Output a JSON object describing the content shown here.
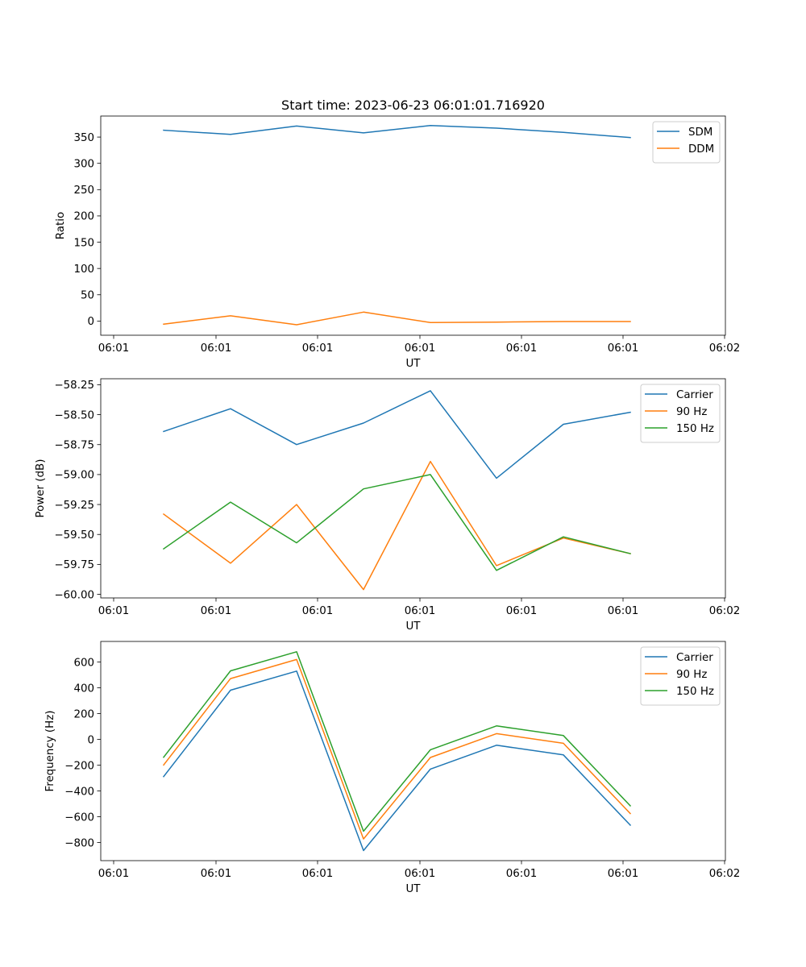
{
  "figure_title": "Start time: 2023-06-23 06:01:01.716920",
  "chart_data": [
    {
      "type": "line",
      "title": "Start time: 2023-06-23 06:01:01.716920",
      "xlabel": "UT",
      "ylabel": "Ratio",
      "x_tick_labels": [
        "06:01",
        "06:01",
        "06:01",
        "06:01",
        "06:01",
        "06:01",
        "06:02"
      ],
      "y_ticks": [
        0,
        50,
        100,
        150,
        200,
        250,
        300,
        350
      ],
      "ylim": [
        -27,
        390
      ],
      "legend_position": "upper right",
      "series": [
        {
          "name": "SDM",
          "color": "#1f77b4",
          "values": [
            363,
            355,
            371,
            358,
            372,
            367,
            359,
            349
          ]
        },
        {
          "name": "DDM",
          "color": "#ff7f0e",
          "values": [
            -6,
            10,
            -7,
            17,
            -3,
            -2,
            -1,
            -1
          ]
        }
      ]
    },
    {
      "type": "line",
      "title": "",
      "xlabel": "UT",
      "ylabel": "Power (dB)",
      "x_tick_labels": [
        "06:01",
        "06:01",
        "06:01",
        "06:01",
        "06:01",
        "06:01",
        "06:02"
      ],
      "y_ticks": [
        -60.0,
        -59.75,
        -59.5,
        -59.25,
        -59.0,
        -58.75,
        -58.5,
        -58.25
      ],
      "y_tick_labels": [
        "−60.00",
        "−59.75",
        "−59.50",
        "−59.25",
        "−59.00",
        "−58.75",
        "−58.50",
        "−58.25"
      ],
      "ylim": [
        -60.03,
        -58.2
      ],
      "legend_position": "upper right",
      "series": [
        {
          "name": "Carrier",
          "color": "#1f77b4",
          "values": [
            -58.64,
            -58.45,
            -58.75,
            -58.57,
            -58.3,
            -59.03,
            -58.58,
            -58.48
          ]
        },
        {
          "name": "90 Hz",
          "color": "#ff7f0e",
          "values": [
            -59.33,
            -59.74,
            -59.25,
            -59.96,
            -58.89,
            -59.76,
            -59.53,
            -59.66
          ]
        },
        {
          "name": "150 Hz",
          "color": "#2ca02c",
          "values": [
            -59.62,
            -59.23,
            -59.57,
            -59.12,
            -59.0,
            -59.8,
            -59.52,
            -59.66
          ]
        }
      ]
    },
    {
      "type": "line",
      "title": "",
      "xlabel": "UT",
      "ylabel": "Frequency (Hz)",
      "x_tick_labels": [
        "06:01",
        "06:01",
        "06:01",
        "06:01",
        "06:01",
        "06:01",
        "06:02"
      ],
      "y_ticks": [
        -800,
        -600,
        -400,
        -200,
        0,
        200,
        400,
        600
      ],
      "y_tick_labels": [
        "−800",
        "−600",
        "−400",
        "−200",
        "0",
        "200",
        "400",
        "600"
      ],
      "ylim": [
        -940,
        760
      ],
      "legend_position": "upper right",
      "series": [
        {
          "name": "Carrier",
          "color": "#1f77b4",
          "values": [
            -288,
            382,
            530,
            -862,
            -230,
            -45,
            -120,
            -665
          ]
        },
        {
          "name": "90 Hz",
          "color": "#ff7f0e",
          "values": [
            -198,
            472,
            620,
            -772,
            -140,
            45,
            -30,
            -575
          ]
        },
        {
          "name": "150 Hz",
          "color": "#2ca02c",
          "values": [
            -138,
            532,
            680,
            -712,
            -80,
            105,
            30,
            -515
          ]
        }
      ]
    }
  ]
}
